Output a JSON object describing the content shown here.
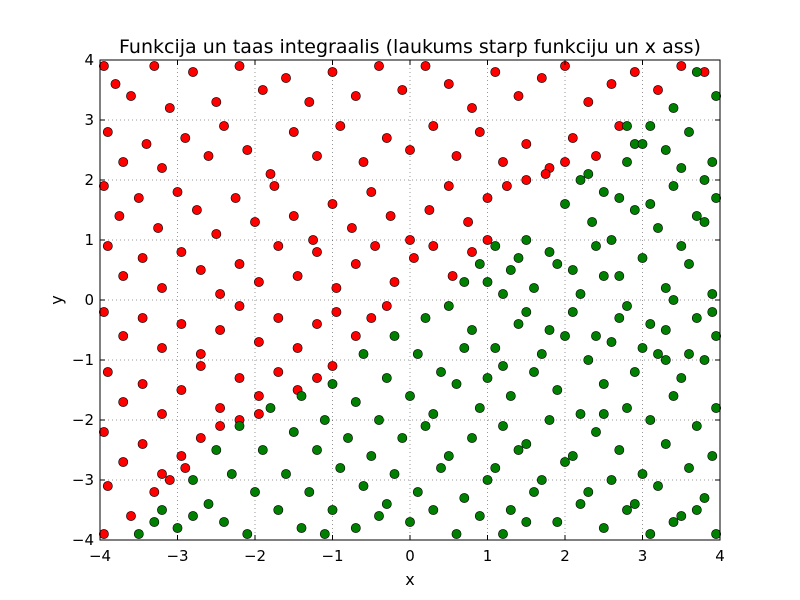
{
  "chart_data": {
    "type": "scatter",
    "title": "Funkcija un taas integraalis (laukums starp funkciju un x ass)",
    "xlabel": "x",
    "ylabel": "y",
    "xlim": [
      -4,
      4
    ],
    "ylim": [
      -4,
      4
    ],
    "x_ticks": [
      "−4",
      "−3",
      "−2",
      "−1",
      "0",
      "1",
      "2",
      "3",
      "4"
    ],
    "y_ticks": [
      "−4",
      "−3",
      "−2",
      "−1",
      "0",
      "1",
      "2",
      "3",
      "4"
    ],
    "grid": true,
    "legend": "none",
    "series": [
      {
        "color": "#ff0000",
        "points": [
          [
            -3.95,
            3.9
          ],
          [
            -3.8,
            3.6
          ],
          [
            -3.6,
            3.4
          ],
          [
            -3.3,
            3.9
          ],
          [
            -3.1,
            3.2
          ],
          [
            -2.8,
            3.8
          ],
          [
            -2.5,
            3.3
          ],
          [
            -2.2,
            3.9
          ],
          [
            -1.9,
            3.5
          ],
          [
            -1.6,
            3.7
          ],
          [
            -1.3,
            3.3
          ],
          [
            -1.0,
            3.8
          ],
          [
            -0.7,
            3.4
          ],
          [
            -0.4,
            3.9
          ],
          [
            -0.1,
            3.5
          ],
          [
            0.2,
            3.9
          ],
          [
            0.5,
            3.6
          ],
          [
            0.8,
            3.2
          ],
          [
            1.1,
            3.8
          ],
          [
            1.4,
            3.4
          ],
          [
            1.7,
            3.7
          ],
          [
            2.0,
            3.9
          ],
          [
            2.3,
            3.3
          ],
          [
            2.6,
            3.6
          ],
          [
            2.9,
            3.8
          ],
          [
            3.2,
            3.5
          ],
          [
            3.5,
            3.9
          ],
          [
            3.8,
            3.8
          ],
          [
            -3.9,
            2.8
          ],
          [
            -3.7,
            2.3
          ],
          [
            -3.4,
            2.6
          ],
          [
            -3.2,
            2.2
          ],
          [
            -2.9,
            2.7
          ],
          [
            -2.6,
            2.4
          ],
          [
            -2.4,
            2.9
          ],
          [
            -2.1,
            2.5
          ],
          [
            -1.8,
            2.1
          ],
          [
            -1.5,
            2.8
          ],
          [
            -1.2,
            2.4
          ],
          [
            -0.9,
            2.9
          ],
          [
            -0.6,
            2.3
          ],
          [
            -0.3,
            2.7
          ],
          [
            0.0,
            2.5
          ],
          [
            0.3,
            2.9
          ],
          [
            0.6,
            2.4
          ],
          [
            0.9,
            2.8
          ],
          [
            1.2,
            2.3
          ],
          [
            1.5,
            2.6
          ],
          [
            1.8,
            2.2
          ],
          [
            2.1,
            2.7
          ],
          [
            2.4,
            2.4
          ],
          [
            2.7,
            2.9
          ],
          [
            -3.95,
            1.9
          ],
          [
            -3.75,
            1.4
          ],
          [
            -3.5,
            1.7
          ],
          [
            -3.25,
            1.2
          ],
          [
            -3.0,
            1.8
          ],
          [
            -2.75,
            1.5
          ],
          [
            -2.5,
            1.1
          ],
          [
            -2.25,
            1.7
          ],
          [
            -2.0,
            1.3
          ],
          [
            -1.75,
            1.9
          ],
          [
            -1.5,
            1.4
          ],
          [
            -1.25,
            1.0
          ],
          [
            -1.0,
            1.6
          ],
          [
            -0.75,
            1.2
          ],
          [
            -0.5,
            1.8
          ],
          [
            -0.25,
            1.4
          ],
          [
            0.0,
            1.0
          ],
          [
            0.25,
            1.5
          ],
          [
            0.5,
            1.9
          ],
          [
            0.75,
            1.3
          ],
          [
            1.0,
            1.7
          ],
          [
            1.25,
            1.9
          ],
          [
            1.5,
            2.0
          ],
          [
            1.75,
            2.1
          ],
          [
            2.0,
            2.3
          ],
          [
            -3.9,
            0.9
          ],
          [
            -3.7,
            0.4
          ],
          [
            -3.45,
            0.7
          ],
          [
            -3.2,
            0.2
          ],
          [
            -2.95,
            0.8
          ],
          [
            -2.7,
            0.5
          ],
          [
            -2.45,
            0.1
          ],
          [
            -2.2,
            0.6
          ],
          [
            -1.95,
            0.3
          ],
          [
            -1.7,
            0.9
          ],
          [
            -1.45,
            0.4
          ],
          [
            -1.2,
            0.8
          ],
          [
            -0.95,
            0.2
          ],
          [
            -0.7,
            0.6
          ],
          [
            -0.45,
            0.9
          ],
          [
            -0.2,
            0.3
          ],
          [
            0.05,
            0.7
          ],
          [
            0.3,
            0.9
          ],
          [
            0.55,
            0.4
          ],
          [
            0.8,
            0.8
          ],
          [
            1.0,
            1.0
          ],
          [
            -3.95,
            -0.2
          ],
          [
            -3.7,
            -0.6
          ],
          [
            -3.45,
            -0.3
          ],
          [
            -3.2,
            -0.8
          ],
          [
            -2.95,
            -0.4
          ],
          [
            -2.7,
            -0.9
          ],
          [
            -2.45,
            -0.5
          ],
          [
            -2.2,
            -0.1
          ],
          [
            -1.95,
            -0.7
          ],
          [
            -1.7,
            -0.3
          ],
          [
            -1.45,
            -0.8
          ],
          [
            -1.2,
            -0.4
          ],
          [
            -0.95,
            -0.2
          ],
          [
            -0.7,
            -0.6
          ],
          [
            -0.5,
            -0.3
          ],
          [
            -0.3,
            -0.1
          ],
          [
            -3.9,
            -1.2
          ],
          [
            -3.7,
            -1.7
          ],
          [
            -3.45,
            -1.4
          ],
          [
            -3.2,
            -1.9
          ],
          [
            -2.95,
            -1.5
          ],
          [
            -2.7,
            -1.1
          ],
          [
            -2.45,
            -1.8
          ],
          [
            -2.2,
            -1.3
          ],
          [
            -1.95,
            -1.6
          ],
          [
            -1.7,
            -1.2
          ],
          [
            -1.45,
            -1.5
          ],
          [
            -1.2,
            -1.3
          ],
          [
            -1.0,
            -1.1
          ],
          [
            -3.95,
            -2.2
          ],
          [
            -3.7,
            -2.7
          ],
          [
            -3.45,
            -2.4
          ],
          [
            -3.2,
            -2.9
          ],
          [
            -2.95,
            -2.6
          ],
          [
            -2.7,
            -2.3
          ],
          [
            -2.45,
            -2.1
          ],
          [
            -2.2,
            -2.0
          ],
          [
            -1.95,
            -1.9
          ],
          [
            -3.9,
            -3.1
          ],
          [
            -3.6,
            -3.6
          ],
          [
            -3.3,
            -3.2
          ],
          [
            -3.1,
            -3.0
          ],
          [
            -2.9,
            -2.8
          ],
          [
            -3.95,
            -3.9
          ]
        ]
      },
      {
        "color": "#008000",
        "points": [
          [
            3.95,
            3.4
          ],
          [
            3.7,
            3.8
          ],
          [
            3.4,
            3.2
          ],
          [
            3.1,
            2.9
          ],
          [
            2.9,
            2.6
          ],
          [
            2.8,
            2.9
          ],
          [
            3.3,
            2.5
          ],
          [
            3.6,
            2.8
          ],
          [
            3.9,
            2.3
          ],
          [
            2.2,
            2.0
          ],
          [
            2.5,
            1.8
          ],
          [
            2.8,
            2.3
          ],
          [
            3.1,
            1.6
          ],
          [
            3.4,
            1.9
          ],
          [
            3.7,
            1.4
          ],
          [
            3.95,
            1.7
          ],
          [
            2.0,
            1.6
          ],
          [
            2.35,
            1.3
          ],
          [
            2.6,
            1.0
          ],
          [
            2.9,
            1.5
          ],
          [
            3.2,
            1.2
          ],
          [
            3.5,
            0.9
          ],
          [
            3.8,
            1.3
          ],
          [
            1.5,
            1.0
          ],
          [
            1.8,
            0.8
          ],
          [
            2.1,
            0.5
          ],
          [
            2.4,
            0.9
          ],
          [
            2.7,
            0.4
          ],
          [
            3.0,
            0.7
          ],
          [
            3.3,
            0.2
          ],
          [
            3.6,
            0.6
          ],
          [
            3.9,
            0.1
          ],
          [
            1.1,
            0.9
          ],
          [
            1.3,
            0.5
          ],
          [
            1.6,
            0.2
          ],
          [
            1.9,
            0.6
          ],
          [
            2.2,
            0.1
          ],
          [
            2.5,
            0.4
          ],
          [
            2.8,
            -0.1
          ],
          [
            3.1,
            -0.4
          ],
          [
            3.4,
            0.0
          ],
          [
            3.7,
            -0.3
          ],
          [
            3.95,
            -0.6
          ],
          [
            0.7,
            0.3
          ],
          [
            0.9,
            0.6
          ],
          [
            1.2,
            0.1
          ],
          [
            1.5,
            -0.2
          ],
          [
            1.8,
            -0.5
          ],
          [
            2.1,
            -0.2
          ],
          [
            2.4,
            -0.6
          ],
          [
            2.7,
            -0.3
          ],
          [
            3.0,
            -0.8
          ],
          [
            3.3,
            -0.5
          ],
          [
            3.6,
            -0.9
          ],
          [
            3.9,
            -0.2
          ],
          [
            0.2,
            -0.3
          ],
          [
            0.5,
            -0.1
          ],
          [
            0.8,
            -0.5
          ],
          [
            1.1,
            -0.8
          ],
          [
            1.4,
            -0.4
          ],
          [
            1.7,
            -0.9
          ],
          [
            2.0,
            -0.6
          ],
          [
            2.3,
            -1.0
          ],
          [
            2.6,
            -0.7
          ],
          [
            2.9,
            -1.2
          ],
          [
            3.2,
            -0.9
          ],
          [
            3.5,
            -1.3
          ],
          [
            3.8,
            -1.0
          ],
          [
            -0.2,
            -0.6
          ],
          [
            0.1,
            -0.9
          ],
          [
            0.4,
            -1.2
          ],
          [
            0.7,
            -0.8
          ],
          [
            1.0,
            -1.3
          ],
          [
            1.3,
            -1.6
          ],
          [
            1.6,
            -1.2
          ],
          [
            1.9,
            -1.5
          ],
          [
            2.2,
            -1.9
          ],
          [
            2.5,
            -1.4
          ],
          [
            2.8,
            -1.8
          ],
          [
            3.1,
            -2.0
          ],
          [
            3.4,
            -1.6
          ],
          [
            3.7,
            -2.1
          ],
          [
            3.95,
            -1.8
          ],
          [
            -0.6,
            -0.9
          ],
          [
            -0.3,
            -1.3
          ],
          [
            0.0,
            -1.6
          ],
          [
            0.3,
            -1.9
          ],
          [
            0.6,
            -1.4
          ],
          [
            0.9,
            -1.8
          ],
          [
            1.2,
            -2.1
          ],
          [
            1.5,
            -2.4
          ],
          [
            1.8,
            -2.0
          ],
          [
            2.1,
            -2.6
          ],
          [
            2.4,
            -2.2
          ],
          [
            2.7,
            -2.5
          ],
          [
            3.0,
            -2.9
          ],
          [
            3.3,
            -2.4
          ],
          [
            3.6,
            -2.8
          ],
          [
            3.9,
            -2.6
          ],
          [
            -1.0,
            -1.4
          ],
          [
            -0.7,
            -1.7
          ],
          [
            -0.4,
            -2.0
          ],
          [
            -0.1,
            -2.3
          ],
          [
            0.2,
            -2.1
          ],
          [
            0.5,
            -2.6
          ],
          [
            0.8,
            -2.3
          ],
          [
            1.1,
            -2.8
          ],
          [
            1.4,
            -2.5
          ],
          [
            1.7,
            -3.0
          ],
          [
            2.0,
            -2.7
          ],
          [
            2.3,
            -3.2
          ],
          [
            2.6,
            -3.0
          ],
          [
            2.9,
            -3.4
          ],
          [
            3.2,
            -3.1
          ],
          [
            3.5,
            -3.6
          ],
          [
            3.8,
            -3.3
          ],
          [
            -1.4,
            -1.6
          ],
          [
            -1.1,
            -2.0
          ],
          [
            -0.8,
            -2.3
          ],
          [
            -0.5,
            -2.6
          ],
          [
            -0.2,
            -2.9
          ],
          [
            0.1,
            -3.2
          ],
          [
            0.4,
            -2.8
          ],
          [
            0.7,
            -3.3
          ],
          [
            1.0,
            -3.0
          ],
          [
            1.3,
            -3.5
          ],
          [
            1.6,
            -3.2
          ],
          [
            1.9,
            -3.7
          ],
          [
            2.2,
            -3.4
          ],
          [
            2.5,
            -3.8
          ],
          [
            2.8,
            -3.5
          ],
          [
            3.1,
            -3.9
          ],
          [
            3.4,
            -3.7
          ],
          [
            3.7,
            -3.5
          ],
          [
            3.95,
            -3.9
          ],
          [
            -1.8,
            -1.8
          ],
          [
            -1.5,
            -2.2
          ],
          [
            -1.2,
            -2.5
          ],
          [
            -0.9,
            -2.8
          ],
          [
            -0.6,
            -3.1
          ],
          [
            -0.3,
            -3.4
          ],
          [
            0.0,
            -3.7
          ],
          [
            0.3,
            -3.5
          ],
          [
            0.6,
            -3.9
          ],
          [
            0.9,
            -3.6
          ],
          [
            1.2,
            -3.9
          ],
          [
            1.5,
            -3.7
          ],
          [
            -2.2,
            -2.1
          ],
          [
            -1.9,
            -2.5
          ],
          [
            -1.6,
            -2.9
          ],
          [
            -1.3,
            -3.2
          ],
          [
            -1.0,
            -3.5
          ],
          [
            -0.7,
            -3.8
          ],
          [
            -0.4,
            -3.6
          ],
          [
            -2.5,
            -2.5
          ],
          [
            -2.3,
            -2.9
          ],
          [
            -2.0,
            -3.2
          ],
          [
            -1.7,
            -3.5
          ],
          [
            -1.4,
            -3.8
          ],
          [
            -1.1,
            -3.9
          ],
          [
            -2.8,
            -3.0
          ],
          [
            -2.6,
            -3.4
          ],
          [
            -2.4,
            -3.7
          ],
          [
            -2.1,
            -3.9
          ],
          [
            -3.2,
            -3.5
          ],
          [
            -3.0,
            -3.8
          ],
          [
            -2.8,
            -3.6
          ],
          [
            -3.5,
            -3.9
          ],
          [
            -3.3,
            -3.7
          ],
          [
            1.0,
            0.3
          ],
          [
            1.4,
            0.7
          ],
          [
            2.3,
            2.1
          ],
          [
            2.7,
            1.7
          ],
          [
            3.0,
            2.6
          ],
          [
            3.5,
            2.2
          ],
          [
            3.8,
            2.0
          ],
          [
            2.5,
            -1.9
          ],
          [
            3.3,
            -1.0
          ],
          [
            1.2,
            -1.1
          ]
        ]
      }
    ]
  }
}
